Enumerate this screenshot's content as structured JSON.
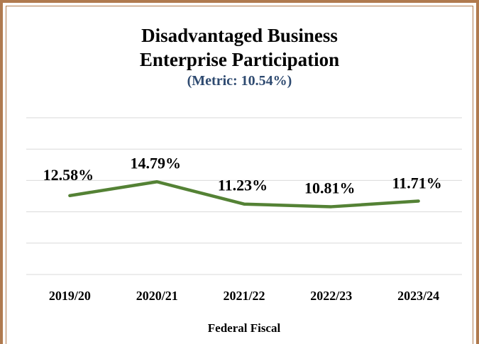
{
  "chart_data": {
    "type": "line",
    "title_line1": "Disadvantaged Business",
    "title_line2": "Enterprise Participation",
    "subtitle": "(Metric: 10.54%)",
    "xlabel": "Federal Fiscal",
    "ylabel": "",
    "categories": [
      "2019/20",
      "2020/21",
      "2021/22",
      "2022/23",
      "2023/24"
    ],
    "series": [
      {
        "values": [
          12.58,
          14.79,
          11.23,
          10.81,
          11.71
        ],
        "data_labels": [
          "12.58%",
          "14.79%",
          "11.23%",
          "10.81%",
          "11.71%"
        ],
        "color": "#548235"
      }
    ],
    "ylim": [
      0,
      25
    ],
    "grid": true,
    "legend": "none"
  }
}
